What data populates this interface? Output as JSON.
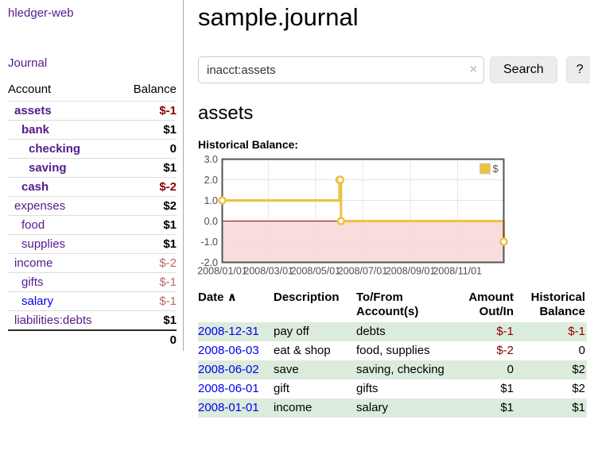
{
  "app": {
    "title": "hledger-web"
  },
  "sidebar": {
    "journal_link": "Journal",
    "headers": {
      "account": "Account",
      "balance": "Balance"
    },
    "accounts": [
      {
        "name": "assets",
        "balance": "$-1"
      },
      {
        "name": "bank",
        "balance": "$1"
      },
      {
        "name": "checking",
        "balance": "0"
      },
      {
        "name": "saving",
        "balance": "$1"
      },
      {
        "name": "cash",
        "balance": "$-2"
      },
      {
        "name": "expenses",
        "balance": "$2"
      },
      {
        "name": "food",
        "balance": "$1"
      },
      {
        "name": "supplies",
        "balance": "$1"
      },
      {
        "name": "income",
        "balance": "$-2"
      },
      {
        "name": "gifts",
        "balance": "$-1"
      },
      {
        "name": "salary",
        "balance": "$-1"
      },
      {
        "name": "liabilities:debts",
        "balance": "$1"
      }
    ],
    "total": "0"
  },
  "main": {
    "title": "sample.journal",
    "search": {
      "value": "inacct:assets",
      "clear_icon": "×",
      "search_button": "Search",
      "help_button": "?"
    },
    "account_heading": "assets",
    "chart_label": "Historical Balance:",
    "register": {
      "headers": {
        "date": "Date",
        "sort_indicator": "∧",
        "description": "Description",
        "accounts": "To/From Account(s)",
        "amount": "Amount Out/In",
        "balance": "Historical Balance"
      },
      "rows": [
        {
          "date": "2008-12-31",
          "description": "pay off",
          "accounts": "debts",
          "amount": "$-1",
          "balance": "$-1"
        },
        {
          "date": "2008-06-03",
          "description": "eat & shop",
          "accounts": "food, supplies",
          "amount": "$-2",
          "balance": "0"
        },
        {
          "date": "2008-06-02",
          "description": "save",
          "accounts": "saving, checking",
          "amount": "0",
          "balance": "$2"
        },
        {
          "date": "2008-06-01",
          "description": "gift",
          "accounts": "gifts",
          "amount": "$1",
          "balance": "$2"
        },
        {
          "date": "2008-01-01",
          "description": "income",
          "accounts": "salary",
          "amount": "$1",
          "balance": "$1"
        }
      ]
    }
  },
  "chart_data": {
    "type": "line",
    "style": "step",
    "title": "Historical Balance",
    "series": [
      {
        "name": "$",
        "color": "#edc240",
        "x": [
          "2008-01-01",
          "2008-06-01",
          "2008-06-02",
          "2008-06-03",
          "2008-12-31"
        ],
        "y": [
          1,
          2,
          2,
          0,
          -1
        ]
      }
    ],
    "xlim": [
      "2008-01-01",
      "2008-12-31"
    ],
    "ylim": [
      -2,
      3
    ],
    "yticks": [
      3.0,
      2.0,
      1.0,
      0.0,
      -1.0,
      -2.0
    ],
    "xticks": [
      {
        "label": "2008/01/01",
        "date": "2008-01-01"
      },
      {
        "label": "2008/03/01",
        "date": "2008-03-01"
      },
      {
        "label": "2008/05/01",
        "date": "2008-05-01"
      },
      {
        "label": "2008/07/01",
        "date": "2008-07-01"
      },
      {
        "label": "2008/09/01",
        "date": "2008-09-01"
      },
      {
        "label": "2008/11/01",
        "date": "2008-11-01"
      }
    ],
    "grid": true,
    "legend_position": "top-right",
    "colors": {
      "border": "#545454",
      "grid": "#e4e4e4",
      "zero_line": "#8b0000",
      "negative_region": "#f9dcdc",
      "marker_fill": "#ffffff",
      "tick_text": "#4d4d4d"
    }
  }
}
